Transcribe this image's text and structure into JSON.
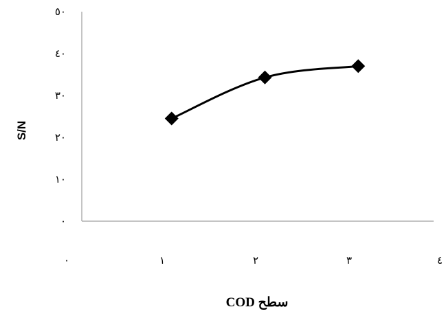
{
  "chart_data": {
    "type": "line",
    "title": "",
    "xlabel": "سطح COD",
    "ylabel": "S/N",
    "x_ticks": [
      "٠",
      "١",
      "٢",
      "٣",
      "٤"
    ],
    "y_ticks": [
      "٠",
      "١٠",
      "٢٠",
      "٣٠",
      "٤٠",
      "٥٠"
    ],
    "xlim": [
      0,
      4
    ],
    "ylim": [
      0,
      50
    ],
    "grid": false,
    "legend": "none",
    "marker": "diamond",
    "line_color": "#000000",
    "series": [
      {
        "x": [
          1,
          2,
          3
        ],
        "values": [
          24.5,
          34.3,
          37
        ]
      }
    ]
  }
}
